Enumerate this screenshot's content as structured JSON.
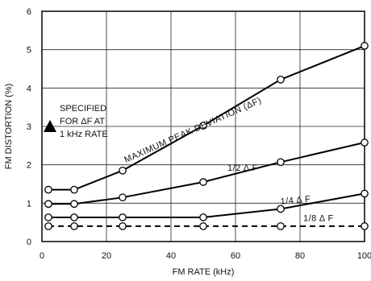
{
  "chart_data": {
    "type": "line",
    "title": "",
    "xlabel": "FM RATE (kHz)",
    "ylabel": "FM DISTORTION (%)",
    "xlim": [
      0,
      100
    ],
    "ylim": [
      0,
      6
    ],
    "x_ticks": [
      0,
      20,
      40,
      60,
      80,
      100
    ],
    "y_ticks": [
      0,
      1,
      2,
      3,
      4,
      5,
      6
    ],
    "grid": true,
    "series": [
      {
        "name": "MAXIMUM PEAK DEVIATION (ΔF)",
        "style": "solid",
        "x": [
          2,
          10,
          25,
          50,
          74,
          100
        ],
        "y": [
          1.35,
          1.35,
          1.85,
          3.02,
          4.22,
          5.1
        ]
      },
      {
        "name": "1/2 Δ F",
        "style": "solid",
        "x": [
          2,
          10,
          25,
          50,
          74,
          100
        ],
        "y": [
          0.98,
          0.98,
          1.15,
          1.55,
          2.07,
          2.58
        ]
      },
      {
        "name": "1/4 Δ F",
        "style": "solid",
        "x": [
          2,
          10,
          25,
          50,
          74,
          100
        ],
        "y": [
          0.63,
          0.63,
          0.63,
          0.63,
          0.85,
          1.25
        ]
      },
      {
        "name": "1/8 Δ F",
        "style": "dashed",
        "x": [
          2,
          10,
          25,
          50,
          74,
          100
        ],
        "y": [
          0.4,
          0.4,
          0.4,
          0.4,
          0.4,
          0.4
        ]
      }
    ],
    "annotations": [
      {
        "marker": "triangle",
        "x": 0,
        "y": 3,
        "lines": [
          "SPECIFIED",
          "FOR ΔF AT",
          "1 kHz RATE"
        ]
      }
    ]
  }
}
